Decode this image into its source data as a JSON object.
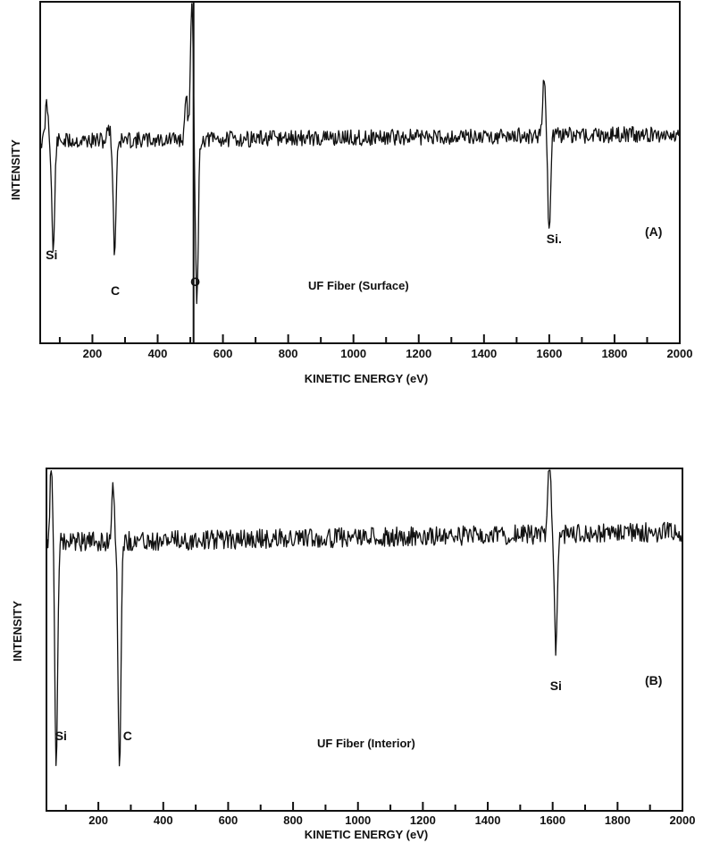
{
  "chart_data": [
    {
      "type": "line",
      "panel_label": "(A)",
      "caption": "UF Fiber (Surface)",
      "xlabel": "KINETIC ENERGY (eV)",
      "ylabel": "INTENSITY",
      "xlim": [
        40,
        2000
      ],
      "x_ticks": [
        200,
        400,
        600,
        800,
        1000,
        1200,
        1400,
        1600,
        1800,
        2000
      ],
      "x_tick_labels": [
        "200",
        "400",
        "600",
        "800",
        "1000",
        "1200",
        "1400",
        "1600",
        "1800",
        "2000"
      ],
      "grid": false,
      "annotations": [
        {
          "text": "Si",
          "x": 75
        },
        {
          "text": "C",
          "x": 270
        },
        {
          "text": "O",
          "x": 515
        },
        {
          "text": "Si.",
          "x": 1615
        }
      ],
      "marker_line_x": 510,
      "peaks": [
        {
          "x": 60,
          "height": 0.35
        },
        {
          "x": 80,
          "height": -1.0
        },
        {
          "x": 250,
          "height": 0.13
        },
        {
          "x": 268,
          "height": -1.0
        },
        {
          "x": 488,
          "height": 0.35
        },
        {
          "x": 505,
          "height": 1.3
        },
        {
          "x": 520,
          "height": -1.5
        },
        {
          "x": 1585,
          "height": 0.55
        },
        {
          "x": 1600,
          "height": -0.9
        }
      ]
    },
    {
      "type": "line",
      "panel_label": "(B)",
      "caption": "UF Fiber (Interior)",
      "xlabel": "KINETIC ENERGY (eV)",
      "ylabel": "INTENSITY",
      "xlim": [
        40,
        2000
      ],
      "x_ticks": [
        200,
        400,
        600,
        800,
        1000,
        1200,
        1400,
        1600,
        1800,
        2000
      ],
      "x_tick_labels": [
        "200",
        "400",
        "600",
        "800",
        "1000",
        "1200",
        "1400",
        "1600",
        "1800",
        "2000"
      ],
      "grid": false,
      "annotations": [
        {
          "text": "Si",
          "x": 85
        },
        {
          "text": "C",
          "x": 290
        },
        {
          "text": "Si",
          "x": 1610
        }
      ],
      "peaks": [
        {
          "x": 55,
          "height": 0.9
        },
        {
          "x": 70,
          "height": -2.6
        },
        {
          "x": 245,
          "height": 0.65
        },
        {
          "x": 265,
          "height": -2.6
        },
        {
          "x": 1590,
          "height": 0.9
        },
        {
          "x": 1610,
          "height": -1.3
        }
      ]
    }
  ]
}
